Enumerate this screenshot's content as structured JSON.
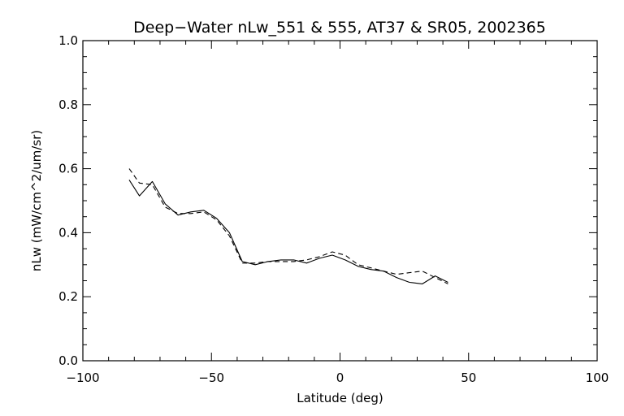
{
  "chart_data": {
    "type": "line",
    "title": "Deep−Water nLw_551 & 555, AT37 & SR05, 2002365",
    "xlabel": "Latitude (deg)",
    "ylabel": "nLw (mW/cm^2/um/sr)",
    "xlim": [
      -100,
      100
    ],
    "ylim": [
      0.0,
      1.0
    ],
    "x_ticks": [
      -100,
      -50,
      0,
      50,
      100
    ],
    "x_tick_labels": [
      "−100",
      "−50",
      "0",
      "50",
      "100"
    ],
    "y_ticks": [
      0.0,
      0.2,
      0.4,
      0.6,
      0.8,
      1.0
    ],
    "y_tick_labels": [
      "0.0",
      "0.2",
      "0.4",
      "0.6",
      "0.8",
      "1.0"
    ],
    "grid": false,
    "series": [
      {
        "style": "solid",
        "x": [
          -82,
          -78,
          -73,
          -68,
          -63,
          -58,
          -53,
          -48,
          -43,
          -38,
          -33,
          -28,
          -23,
          -18,
          -13,
          -8,
          -3,
          2,
          7,
          12,
          17,
          22,
          27,
          32,
          37,
          42
        ],
        "y": [
          0.565,
          0.515,
          0.56,
          0.49,
          0.455,
          0.465,
          0.47,
          0.445,
          0.4,
          0.31,
          0.3,
          0.31,
          0.315,
          0.315,
          0.305,
          0.32,
          0.33,
          0.315,
          0.295,
          0.285,
          0.28,
          0.26,
          0.245,
          0.24,
          0.265,
          0.245
        ]
      },
      {
        "style": "dashed",
        "x": [
          -82,
          -78,
          -73,
          -68,
          -63,
          -58,
          -53,
          -48,
          -43,
          -38,
          -33,
          -28,
          -23,
          -18,
          -13,
          -8,
          -3,
          2,
          7,
          12,
          17,
          22,
          27,
          32,
          37,
          42
        ],
        "y": [
          0.6,
          0.555,
          0.55,
          0.48,
          0.46,
          0.46,
          0.465,
          0.44,
          0.39,
          0.305,
          0.305,
          0.31,
          0.31,
          0.31,
          0.315,
          0.325,
          0.34,
          0.33,
          0.3,
          0.29,
          0.28,
          0.27,
          0.275,
          0.28,
          0.26,
          0.24
        ]
      }
    ]
  }
}
